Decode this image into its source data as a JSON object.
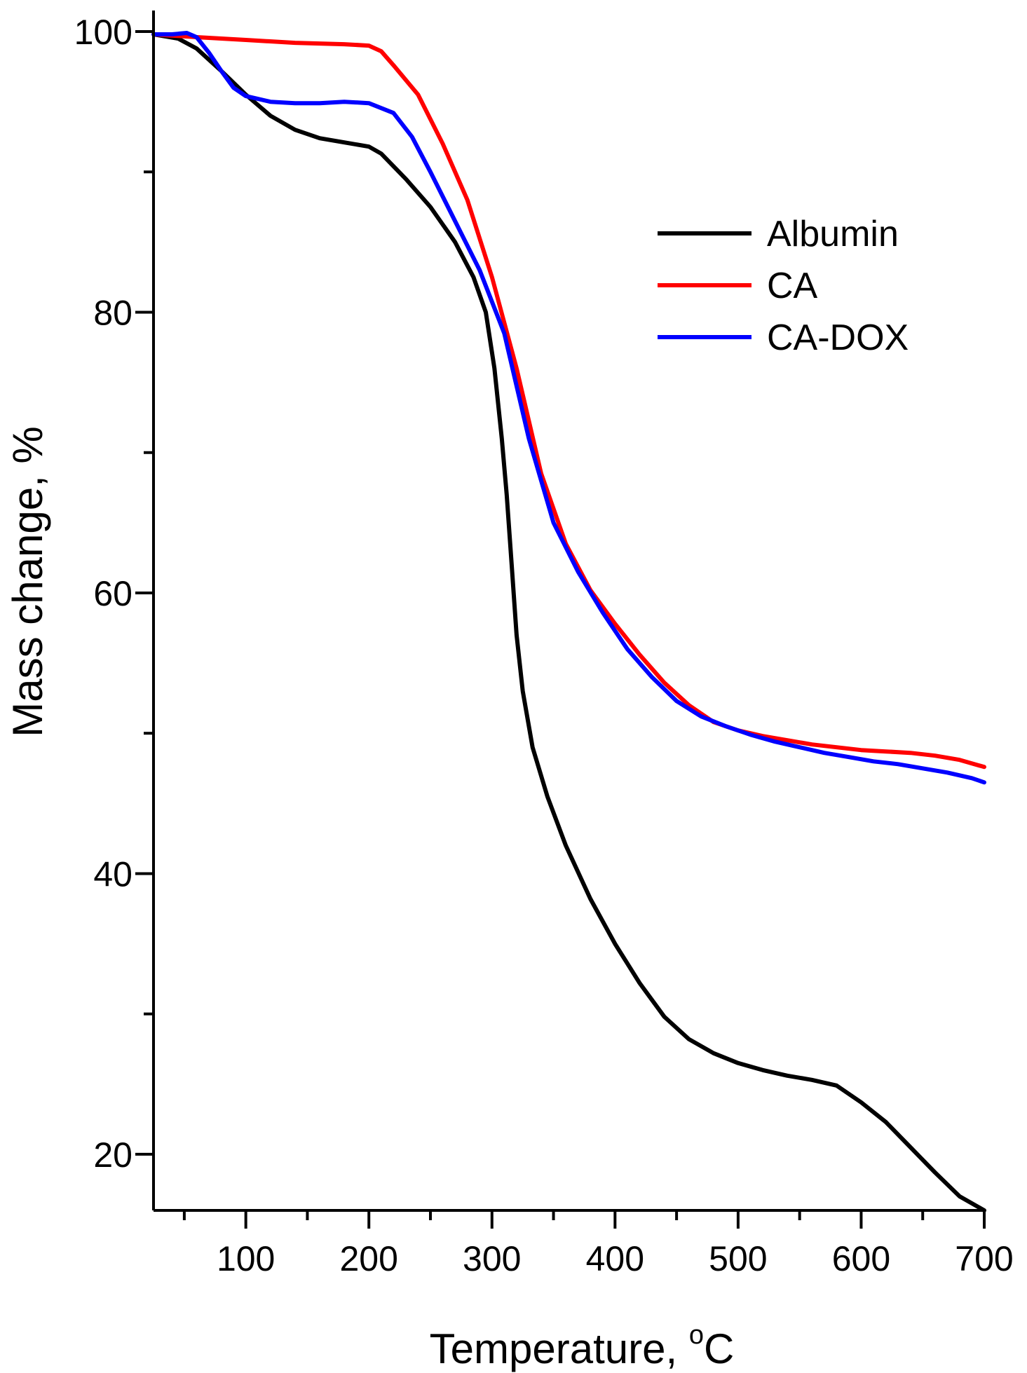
{
  "chart_data": {
    "type": "line",
    "title": "",
    "xlabel": "Temperature, ",
    "xlabel_superscript": "o",
    "xlabel_unit": "C",
    "ylabel": "Mass change, %",
    "xlim": [
      25,
      700
    ],
    "ylim": [
      16,
      101.5
    ],
    "x_ticks": [
      100,
      200,
      300,
      400,
      500,
      600,
      700
    ],
    "y_ticks": [
      20,
      40,
      60,
      80,
      100
    ],
    "legend_position": "top-right",
    "grid": false,
    "series": [
      {
        "name": "Albumin",
        "color": "#000000",
        "points": [
          [
            25,
            99.8
          ],
          [
            45,
            99.5
          ],
          [
            60,
            98.8
          ],
          [
            80,
            97.2
          ],
          [
            100,
            95.5
          ],
          [
            120,
            94
          ],
          [
            140,
            93
          ],
          [
            160,
            92.4
          ],
          [
            180,
            92.1
          ],
          [
            200,
            91.8
          ],
          [
            210,
            91.3
          ],
          [
            230,
            89.5
          ],
          [
            250,
            87.5
          ],
          [
            270,
            85
          ],
          [
            285,
            82.5
          ],
          [
            295,
            80
          ],
          [
            302,
            76
          ],
          [
            308,
            71
          ],
          [
            312,
            67
          ],
          [
            316,
            62
          ],
          [
            320,
            57
          ],
          [
            325,
            53
          ],
          [
            333,
            49
          ],
          [
            345,
            45.5
          ],
          [
            360,
            42
          ],
          [
            380,
            38.2
          ],
          [
            400,
            35
          ],
          [
            420,
            32.2
          ],
          [
            440,
            29.8
          ],
          [
            460,
            28.2
          ],
          [
            480,
            27.2
          ],
          [
            500,
            26.5
          ],
          [
            520,
            26
          ],
          [
            540,
            25.6
          ],
          [
            560,
            25.3
          ],
          [
            580,
            24.9
          ],
          [
            600,
            23.7
          ],
          [
            620,
            22.3
          ],
          [
            640,
            20.5
          ],
          [
            660,
            18.7
          ],
          [
            680,
            17
          ],
          [
            700,
            16
          ]
        ]
      },
      {
        "name": "CA",
        "color": "#ff0000",
        "points": [
          [
            25,
            99.8
          ],
          [
            60,
            99.6
          ],
          [
            100,
            99.4
          ],
          [
            140,
            99.2
          ],
          [
            180,
            99.1
          ],
          [
            200,
            99
          ],
          [
            210,
            98.6
          ],
          [
            220,
            97.6
          ],
          [
            240,
            95.5
          ],
          [
            260,
            92
          ],
          [
            280,
            88
          ],
          [
            300,
            82.5
          ],
          [
            320,
            76
          ],
          [
            340,
            68.5
          ],
          [
            360,
            63.5
          ],
          [
            380,
            60.2
          ],
          [
            400,
            57.8
          ],
          [
            420,
            55.6
          ],
          [
            440,
            53.6
          ],
          [
            460,
            52
          ],
          [
            480,
            50.8
          ],
          [
            500,
            50.2
          ],
          [
            520,
            49.8
          ],
          [
            540,
            49.5
          ],
          [
            560,
            49.2
          ],
          [
            580,
            49
          ],
          [
            600,
            48.8
          ],
          [
            620,
            48.7
          ],
          [
            640,
            48.6
          ],
          [
            660,
            48.4
          ],
          [
            680,
            48.1
          ],
          [
            700,
            47.6
          ]
        ]
      },
      {
        "name": "CA-DOX",
        "color": "#0000ff",
        "points": [
          [
            25,
            99.8
          ],
          [
            40,
            99.8
          ],
          [
            52,
            99.9
          ],
          [
            60,
            99.6
          ],
          [
            70,
            98.5
          ],
          [
            80,
            97.2
          ],
          [
            90,
            96
          ],
          [
            100,
            95.4
          ],
          [
            120,
            95
          ],
          [
            140,
            94.9
          ],
          [
            160,
            94.9
          ],
          [
            180,
            95
          ],
          [
            200,
            94.9
          ],
          [
            220,
            94.2
          ],
          [
            235,
            92.5
          ],
          [
            250,
            90
          ],
          [
            270,
            86.5
          ],
          [
            290,
            83
          ],
          [
            310,
            78.5
          ],
          [
            330,
            71
          ],
          [
            350,
            65
          ],
          [
            370,
            61.5
          ],
          [
            390,
            58.6
          ],
          [
            410,
            56
          ],
          [
            430,
            54
          ],
          [
            450,
            52.3
          ],
          [
            470,
            51.2
          ],
          [
            490,
            50.5
          ],
          [
            510,
            49.9
          ],
          [
            530,
            49.4
          ],
          [
            550,
            49
          ],
          [
            570,
            48.6
          ],
          [
            590,
            48.3
          ],
          [
            610,
            48
          ],
          [
            630,
            47.8
          ],
          [
            650,
            47.5
          ],
          [
            670,
            47.2
          ],
          [
            690,
            46.8
          ],
          [
            700,
            46.5
          ]
        ]
      }
    ]
  }
}
